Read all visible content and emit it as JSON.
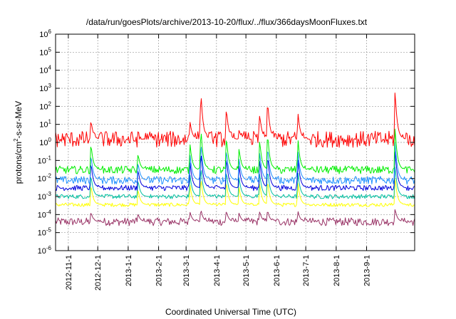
{
  "chart_data": {
    "type": "line",
    "title": "/data/run/goesPlots/archive/2013-10-20/flux/../flux/366daysMoonFluxes.txt",
    "xlabel": "Coordinated Universal Time (UTC)",
    "ylabel_parts": {
      "base": "protons/cm",
      "sup": "2",
      "rest": "-s-sr-MeV"
    },
    "x_range": [
      "2012-10-19",
      "2013-10-20"
    ],
    "y_scale": "log",
    "ylim": [
      1e-06,
      1000000.0
    ],
    "grid": true,
    "x_tick_labels": [
      "2012-11-1",
      "2012-12-1",
      "2013-1-1",
      "2013-2-1",
      "2013-3-1",
      "2013-4-1",
      "2013-5-1",
      "2013-6-1",
      "2013-7-1",
      "2013-8-1",
      "2013-9-1"
    ],
    "y_tick_exponents": [
      -6,
      -5,
      -4,
      -3,
      -2,
      -1,
      0,
      1,
      2,
      3,
      4,
      5,
      6
    ],
    "y_tick_base": "10",
    "events": [
      {
        "date": "2012-11-24",
        "peak": 20
      },
      {
        "date": "2013-01-11",
        "peak": 1.5
      },
      {
        "date": "2013-03-05",
        "peak": 15
      },
      {
        "date": "2013-03-16",
        "peak": 1000
      },
      {
        "date": "2013-04-11",
        "peak": 100
      },
      {
        "date": "2013-04-24",
        "peak": 5
      },
      {
        "date": "2013-05-15",
        "peak": 40
      },
      {
        "date": "2013-05-23",
        "peak": 300
      },
      {
        "date": "2013-06-23",
        "peak": 50
      },
      {
        "date": "2013-09-30",
        "peak": 1000
      }
    ],
    "series": [
      {
        "color": "#ff0000",
        "baseline": 1.5,
        "noise_decades": 0.45,
        "response": 1.0
      },
      {
        "color": "#00ee00",
        "baseline": 0.03,
        "noise_decades": 0.22,
        "response": 0.55
      },
      {
        "color": "#1e90ff",
        "baseline": 0.008,
        "noise_decades": 0.22,
        "response": 0.45
      },
      {
        "color": "#0000dd",
        "baseline": 0.003,
        "noise_decades": 0.15,
        "response": 0.4
      },
      {
        "color": "#00c0a0",
        "baseline": 0.001,
        "noise_decades": 0.12,
        "response": 0.3
      },
      {
        "color": "#ffff00",
        "baseline": 0.00035,
        "noise_decades": 0.1,
        "response": 0.25
      },
      {
        "color": "#993366",
        "baseline": 4e-05,
        "noise_decades": 0.22,
        "response": 0.1
      }
    ]
  }
}
